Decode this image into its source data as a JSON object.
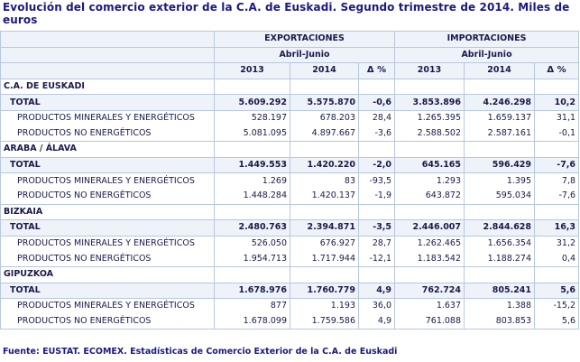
{
  "title": "Evolución del comercio exterior de la C.A. de Euskadi. Segundo trimestre de 2014. Miles de euros",
  "header": {
    "exportaciones": "EXPORTACIONES",
    "importaciones": "IMPORTACIONES",
    "period_exp": "Abril-Junio",
    "period_imp": "Abril-Junio",
    "years": [
      "2013",
      "2014",
      "Δ %",
      "2013",
      "2014",
      "Δ %"
    ]
  },
  "sections": [
    {
      "name": "C.A. DE EUSKADI",
      "rows": [
        {
          "label": "TOTAL",
          "values": [
            "5.609.292",
            "5.575.870",
            "-0,6",
            "3.853.896",
            "4.246.298",
            "10,2"
          ]
        },
        {
          "label": "PRODUCTOS MINERALES Y ENERGÉTICOS",
          "values": [
            "528.197",
            "678.203",
            "28,4",
            "1.265.395",
            "1.659.137",
            "31,1"
          ]
        },
        {
          "label": "PRODUCTOS NO ENERGÉTICOS",
          "values": [
            "5.081.095",
            "4.897.667",
            "-3,6",
            "2.588.502",
            "2.587.161",
            "-0,1"
          ]
        }
      ]
    },
    {
      "name": "ARABA / ÁLAVA",
      "rows": [
        {
          "label": "TOTAL",
          "values": [
            "1.449.553",
            "1.420.220",
            "-2,0",
            "645.165",
            "596.429",
            "-7,6"
          ]
        },
        {
          "label": "PRODUCTOS MINERALES Y ENERGÉTICOS",
          "values": [
            "1.269",
            "83",
            "-93,5",
            "1.293",
            "1.395",
            "7,8"
          ]
        },
        {
          "label": "PRODUCTOS NO ENERGÉTICOS",
          "values": [
            "1.448.284",
            "1.420.137",
            "-1,9",
            "643.872",
            "595.034",
            "-7,6"
          ]
        }
      ]
    },
    {
      "name": "BIZKAIA",
      "rows": [
        {
          "label": "TOTAL",
          "values": [
            "2.480.763",
            "2.394.871",
            "-3,5",
            "2.446.007",
            "2.844.628",
            "16,3"
          ]
        },
        {
          "label": "PRODUCTOS MINERALES Y ENERGÉTICOS",
          "values": [
            "526.050",
            "676.927",
            "28,7",
            "1.262.465",
            "1.656.354",
            "31,2"
          ]
        },
        {
          "label": "PRODUCTOS NO ENERGÉTICOS",
          "values": [
            "1.954.713",
            "1.717.944",
            "-12,1",
            "1.183.542",
            "1.188.274",
            "0,4"
          ]
        }
      ]
    },
    {
      "name": "GIPUZKOA",
      "rows": [
        {
          "label": "TOTAL",
          "values": [
            "1.678.976",
            "1.760.779",
            "4,9",
            "762.724",
            "805.241",
            "5,6"
          ]
        },
        {
          "label": "PRODUCTOS MINERALES Y ENERGÉTICOS",
          "values": [
            "877",
            "1.193",
            "36,0",
            "1.637",
            "1.388",
            "-15,2"
          ]
        },
        {
          "label": "PRODUCTOS NO ENERGÉTICOS",
          "values": [
            "1.678.099",
            "1.759.586",
            "4,9",
            "761.088",
            "803.853",
            "5,6"
          ]
        }
      ]
    }
  ],
  "footer": "Fuente: EUSTAT. ECOMEX. Estadísticas de Comercio Exterior de la C.A. de Euskadi"
}
